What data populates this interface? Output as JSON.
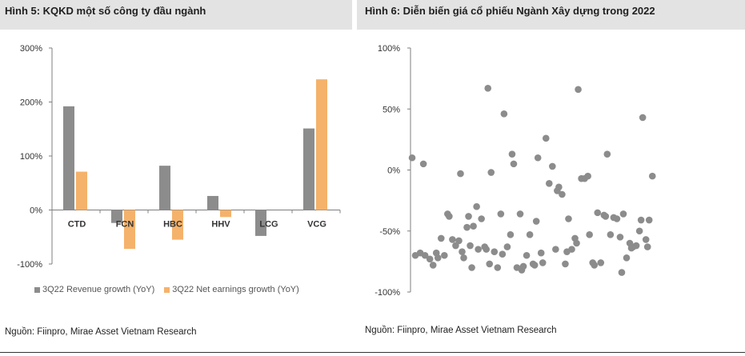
{
  "left": {
    "title": "Hình 5: KQKD một số công ty đầu ngành",
    "source": "Nguồn: Fiinpro, Mirae Asset Vietnam Research"
  },
  "right": {
    "title": "Hình 6: Diễn biến giá cổ phiếu Ngành Xây dựng trong 2022",
    "source": "Nguồn: Fiinpro, Mirae Asset Vietnam Research"
  },
  "colors": {
    "revenue": "#8c8c8c",
    "earnings": "#f5b26b",
    "scatter": "#8c8c8c",
    "axis": "#7f7f7f"
  },
  "chart_data": [
    {
      "type": "bar",
      "title": "Hình 5: KQKD một số công ty đầu ngành",
      "categories": [
        "CTD",
        "FCN",
        "HBC",
        "HHV",
        "LCG",
        "VCG"
      ],
      "series": [
        {
          "name": "3Q22 Revenue growth (YoY)",
          "values": [
            192,
            -24,
            82,
            26,
            -48,
            151
          ]
        },
        {
          "name": "3Q22 Net earnings growth (YoY)",
          "values": [
            71,
            -72,
            -55,
            -13,
            null,
            242
          ]
        }
      ],
      "ylim": [
        -100,
        300
      ],
      "yticks": [
        "-100%",
        "0%",
        "100%",
        "200%",
        "300%"
      ],
      "ytick_values": [
        -100,
        0,
        100,
        200,
        300
      ],
      "legend": "bottom-left"
    },
    {
      "type": "scatter",
      "title": "Hình 6: Diễn biến giá cổ phiếu Ngành Xây dựng trong 2022",
      "ylim": [
        -100,
        100
      ],
      "yticks": [
        "-100%",
        "-50%",
        "0%",
        "50%",
        "100%"
      ],
      "ytick_values": [
        -100,
        -50,
        0,
        50,
        100
      ],
      "xlim": [
        0,
        100
      ],
      "points": [
        [
          0.5,
          10
        ],
        [
          1.5,
          -70
        ],
        [
          3,
          -68
        ],
        [
          4,
          5
        ],
        [
          4.5,
          -70
        ],
        [
          6,
          -73
        ],
        [
          7,
          -78
        ],
        [
          8,
          -68
        ],
        [
          8.5,
          -72
        ],
        [
          9.5,
          -56
        ],
        [
          10.5,
          -70
        ],
        [
          11.5,
          -36
        ],
        [
          12,
          -38
        ],
        [
          13,
          -57
        ],
        [
          14,
          -62
        ],
        [
          15,
          -58
        ],
        [
          15.5,
          -3
        ],
        [
          16,
          -67
        ],
        [
          16.5,
          -72
        ],
        [
          17.5,
          -47
        ],
        [
          18,
          -38
        ],
        [
          18.5,
          -62
        ],
        [
          19,
          -80
        ],
        [
          19.5,
          -46
        ],
        [
          20.5,
          -30
        ],
        [
          21,
          -65
        ],
        [
          22,
          -40
        ],
        [
          23,
          -63
        ],
        [
          23.5,
          -65
        ],
        [
          24,
          67
        ],
        [
          24.5,
          -77
        ],
        [
          25,
          -2
        ],
        [
          26,
          -67
        ],
        [
          27,
          -80
        ],
        [
          28,
          -36
        ],
        [
          28.5,
          -69
        ],
        [
          29,
          46
        ],
        [
          30,
          -63
        ],
        [
          31,
          -53
        ],
        [
          31.5,
          13
        ],
        [
          32,
          5
        ],
        [
          33,
          -80
        ],
        [
          34,
          -36
        ],
        [
          34.5,
          -82
        ],
        [
          35,
          -79
        ],
        [
          36,
          -70
        ],
        [
          37,
          -53
        ],
        [
          38,
          -77
        ],
        [
          38.5,
          -78
        ],
        [
          39,
          -42
        ],
        [
          39.5,
          10
        ],
        [
          40.5,
          -68
        ],
        [
          41,
          -76
        ],
        [
          42,
          26
        ],
        [
          43,
          -11
        ],
        [
          44,
          3
        ],
        [
          45,
          -65
        ],
        [
          45.5,
          -17
        ],
        [
          46,
          -14
        ],
        [
          47,
          -20
        ],
        [
          48,
          -77
        ],
        [
          48.5,
          -67
        ],
        [
          49,
          -40
        ],
        [
          50,
          -65
        ],
        [
          51,
          -56
        ],
        [
          51.5,
          -60
        ],
        [
          52,
          66
        ],
        [
          53,
          -7
        ],
        [
          54,
          -7
        ],
        [
          55,
          -5
        ],
        [
          55.5,
          -53
        ],
        [
          56.5,
          -76
        ],
        [
          57,
          -78
        ],
        [
          58,
          -35
        ],
        [
          59,
          -76
        ],
        [
          60,
          -37
        ],
        [
          60.5,
          -38
        ],
        [
          61,
          13
        ],
        [
          62,
          -53
        ],
        [
          63,
          -39
        ],
        [
          64,
          -40
        ],
        [
          65,
          -55
        ],
        [
          65.5,
          -84
        ],
        [
          66,
          -36
        ],
        [
          67,
          -72
        ],
        [
          68,
          -60
        ],
        [
          68.5,
          -64
        ],
        [
          69,
          -63
        ],
        [
          70,
          -62
        ],
        [
          71,
          -50
        ],
        [
          71.5,
          -41
        ],
        [
          72,
          43
        ],
        [
          73,
          -57
        ],
        [
          73.5,
          -63
        ],
        [
          74,
          -41
        ],
        [
          75,
          -5
        ]
      ]
    }
  ]
}
